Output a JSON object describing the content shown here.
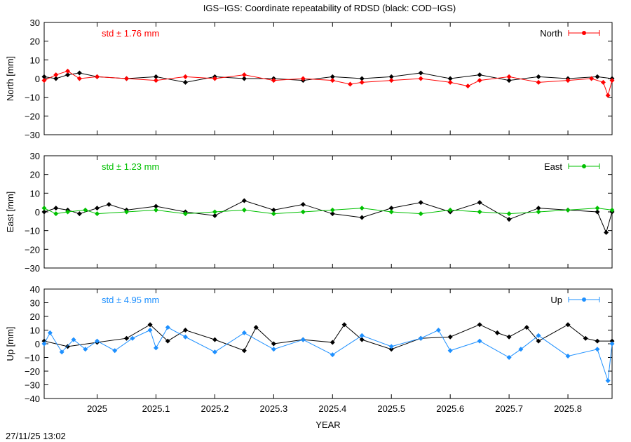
{
  "title": "IGS−IGS: Coordinate repeatability of RDSD (black: COD−IGS)",
  "xlabel": "YEAR",
  "timestamp": "27/11/25 13:02",
  "x_ticks": [
    {
      "v": 2025.0,
      "label": "2025"
    },
    {
      "v": 2025.1,
      "label": "2025.1"
    },
    {
      "v": 2025.2,
      "label": "2025.2"
    },
    {
      "v": 2025.3,
      "label": "2025.3"
    },
    {
      "v": 2025.4,
      "label": "2025.4"
    },
    {
      "v": 2025.5,
      "label": "2025.5"
    },
    {
      "v": 2025.6,
      "label": "2025.6"
    },
    {
      "v": 2025.7,
      "label": "2025.7"
    },
    {
      "v": 2025.8,
      "label": "2025.8"
    }
  ],
  "chart_data": [
    {
      "type": "line",
      "id": "north",
      "ylabel": "North [mm]",
      "legend": "North",
      "legend_position": "top-right",
      "std_label": "std ± 1.76 mm",
      "color": "#ff0000",
      "ylim": [
        -30,
        30
      ],
      "yticks": [
        -30,
        -20,
        -10,
        0,
        10,
        20,
        30
      ],
      "xlim": [
        2024.91,
        2025.875
      ],
      "series": [
        {
          "name": "North",
          "color": "#ff0000",
          "x": [
            2024.91,
            2024.93,
            2024.95,
            2024.97,
            2025.0,
            2025.05,
            2025.1,
            2025.15,
            2025.2,
            2025.25,
            2025.3,
            2025.35,
            2025.4,
            2025.43,
            2025.45,
            2025.5,
            2025.55,
            2025.6,
            2025.63,
            2025.65,
            2025.7,
            2025.75,
            2025.8,
            2025.84,
            2025.86,
            2025.868,
            2025.875
          ],
          "y": [
            -1,
            2,
            4,
            0,
            1,
            0,
            -1,
            1,
            0,
            2,
            -1,
            0,
            -1,
            -3,
            -2,
            -1,
            0,
            -2,
            -4,
            -1,
            1,
            -2,
            -1,
            0,
            -2,
            -9,
            -1
          ]
        },
        {
          "name": "COD−IGS",
          "color": "#000000",
          "x": [
            2024.91,
            2024.93,
            2024.95,
            2024.97,
            2025.0,
            2025.05,
            2025.1,
            2025.15,
            2025.2,
            2025.25,
            2025.3,
            2025.35,
            2025.4,
            2025.45,
            2025.5,
            2025.55,
            2025.6,
            2025.65,
            2025.7,
            2025.75,
            2025.8,
            2025.85,
            2025.875
          ],
          "y": [
            1,
            0,
            2,
            3,
            1,
            0,
            1,
            -2,
            1,
            0,
            0,
            -1,
            1,
            0,
            1,
            3,
            0,
            2,
            -1,
            1,
            0,
            1,
            0
          ]
        }
      ]
    },
    {
      "type": "line",
      "id": "east",
      "ylabel": "East [mm]",
      "legend": "East",
      "legend_position": "top-right",
      "std_label": "std ± 1.23 mm",
      "color": "#00c000",
      "ylim": [
        -30,
        30
      ],
      "yticks": [
        -30,
        -20,
        -10,
        0,
        10,
        20,
        30
      ],
      "xlim": [
        2024.91,
        2025.875
      ],
      "series": [
        {
          "name": "East",
          "color": "#00c000",
          "x": [
            2024.91,
            2024.93,
            2024.95,
            2024.98,
            2025.0,
            2025.05,
            2025.1,
            2025.15,
            2025.2,
            2025.25,
            2025.3,
            2025.35,
            2025.4,
            2025.45,
            2025.5,
            2025.55,
            2025.6,
            2025.65,
            2025.7,
            2025.75,
            2025.8,
            2025.85,
            2025.875
          ],
          "y": [
            2,
            -1,
            0,
            1,
            -1,
            0,
            1,
            -1,
            0,
            1,
            -1,
            0,
            1,
            2,
            0,
            -1,
            1,
            0,
            -1,
            0,
            1,
            2,
            1
          ]
        },
        {
          "name": "COD−IGS",
          "color": "#000000",
          "x": [
            2024.91,
            2024.93,
            2024.95,
            2024.97,
            2025.0,
            2025.02,
            2025.05,
            2025.1,
            2025.15,
            2025.2,
            2025.25,
            2025.3,
            2025.35,
            2025.4,
            2025.45,
            2025.5,
            2025.55,
            2025.6,
            2025.65,
            2025.7,
            2025.75,
            2025.8,
            2025.85,
            2025.865,
            2025.875
          ],
          "y": [
            0,
            2,
            1,
            -1,
            2,
            4,
            1,
            3,
            0,
            -2,
            6,
            1,
            4,
            -1,
            -3,
            2,
            5,
            0,
            5,
            -4,
            2,
            1,
            0,
            -11,
            0
          ]
        }
      ]
    },
    {
      "type": "line",
      "id": "up",
      "ylabel": "Up [mm]",
      "legend": "Up",
      "legend_position": "top-right",
      "std_label": "std ± 4.95 mm",
      "color": "#1e90ff",
      "ylim": [
        -40,
        40
      ],
      "yticks": [
        -40,
        -30,
        -20,
        -10,
        0,
        10,
        20,
        30,
        40
      ],
      "xlim": [
        2024.91,
        2025.875
      ],
      "series": [
        {
          "name": "Up",
          "color": "#1e90ff",
          "x": [
            2024.91,
            2024.92,
            2024.94,
            2024.96,
            2024.98,
            2025.0,
            2025.03,
            2025.06,
            2025.09,
            2025.1,
            2025.12,
            2025.15,
            2025.2,
            2025.25,
            2025.3,
            2025.35,
            2025.4,
            2025.45,
            2025.5,
            2025.55,
            2025.58,
            2025.6,
            2025.65,
            2025.7,
            2025.72,
            2025.75,
            2025.8,
            2025.85,
            2025.868,
            2025.875
          ],
          "y": [
            0,
            8,
            -6,
            3,
            -4,
            2,
            -5,
            4,
            10,
            -3,
            12,
            5,
            -6,
            8,
            -4,
            3,
            -8,
            6,
            -2,
            4,
            10,
            -5,
            2,
            -10,
            -4,
            6,
            -9,
            -4,
            -27,
            0
          ]
        },
        {
          "name": "COD−IGS",
          "color": "#000000",
          "x": [
            2024.91,
            2024.95,
            2025.0,
            2025.05,
            2025.09,
            2025.12,
            2025.15,
            2025.2,
            2025.25,
            2025.27,
            2025.3,
            2025.35,
            2025.4,
            2025.42,
            2025.45,
            2025.5,
            2025.55,
            2025.6,
            2025.65,
            2025.68,
            2025.7,
            2025.73,
            2025.75,
            2025.8,
            2025.83,
            2025.85,
            2025.875
          ],
          "y": [
            2,
            -2,
            1,
            4,
            14,
            2,
            10,
            3,
            -5,
            12,
            0,
            3,
            1,
            14,
            3,
            -4,
            4,
            5,
            14,
            8,
            5,
            12,
            2,
            14,
            4,
            2,
            2
          ]
        }
      ]
    }
  ]
}
